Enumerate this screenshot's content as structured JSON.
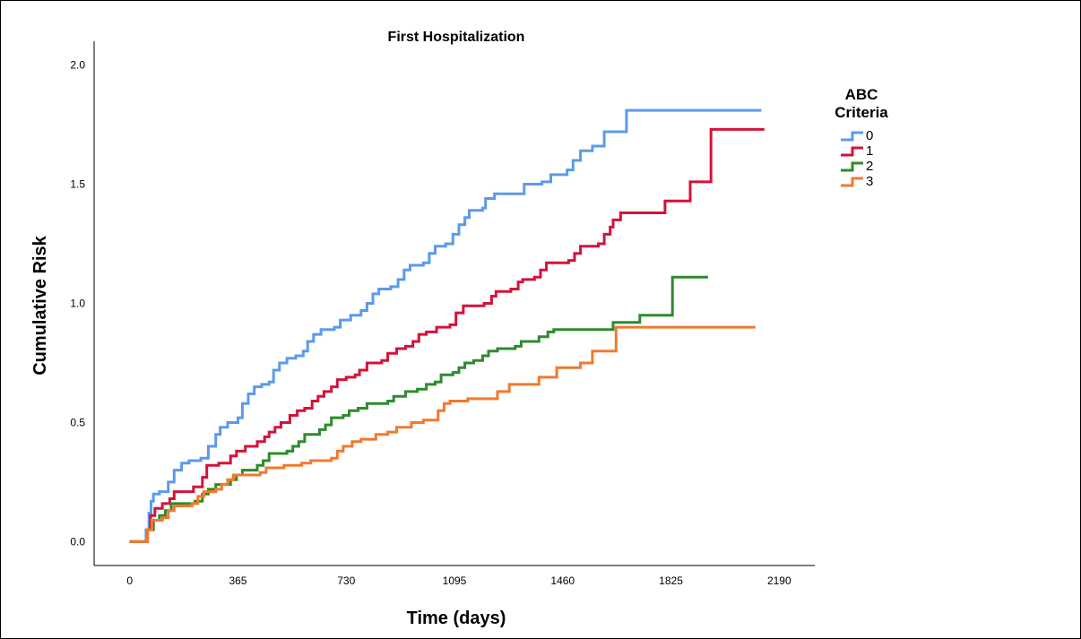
{
  "chart_data": {
    "type": "line",
    "step": true,
    "title": "First Hospitalization",
    "xlabel": "Time (days)",
    "ylabel": "Cumulative Risk",
    "xlim": [
      -120,
      2310
    ],
    "ylim": [
      -0.1,
      2.1
    ],
    "xticks": [
      0,
      365,
      730,
      1095,
      1460,
      1825,
      2190
    ],
    "yticks": [
      0.0,
      0.5,
      1.0,
      1.5,
      2.0
    ],
    "ytick_labels": [
      "0.0",
      "0.5",
      "1.0",
      "1.5",
      "2.0"
    ],
    "grid": false,
    "legend": {
      "title_lines": [
        "ABC",
        "Criteria"
      ],
      "position": "top-right"
    },
    "series": [
      {
        "name": "0",
        "color": "#5b9be8",
        "points": [
          [
            0,
            0
          ],
          [
            40,
            0
          ],
          [
            55,
            0.05
          ],
          [
            65,
            0.12
          ],
          [
            72,
            0.17
          ],
          [
            80,
            0.2
          ],
          [
            100,
            0.21
          ],
          [
            130,
            0.25
          ],
          [
            150,
            0.3
          ],
          [
            175,
            0.33
          ],
          [
            200,
            0.34
          ],
          [
            240,
            0.35
          ],
          [
            265,
            0.4
          ],
          [
            290,
            0.45
          ],
          [
            305,
            0.48
          ],
          [
            330,
            0.5
          ],
          [
            365,
            0.52
          ],
          [
            380,
            0.58
          ],
          [
            400,
            0.62
          ],
          [
            420,
            0.65
          ],
          [
            445,
            0.66
          ],
          [
            470,
            0.67
          ],
          [
            485,
            0.72
          ],
          [
            505,
            0.75
          ],
          [
            530,
            0.77
          ],
          [
            560,
            0.78
          ],
          [
            585,
            0.8
          ],
          [
            600,
            0.84
          ],
          [
            620,
            0.87
          ],
          [
            645,
            0.89
          ],
          [
            690,
            0.9
          ],
          [
            710,
            0.93
          ],
          [
            745,
            0.95
          ],
          [
            780,
            0.97
          ],
          [
            800,
            1.0
          ],
          [
            820,
            1.04
          ],
          [
            840,
            1.06
          ],
          [
            880,
            1.07
          ],
          [
            905,
            1.1
          ],
          [
            925,
            1.14
          ],
          [
            945,
            1.16
          ],
          [
            990,
            1.17
          ],
          [
            1010,
            1.21
          ],
          [
            1030,
            1.24
          ],
          [
            1065,
            1.25
          ],
          [
            1090,
            1.29
          ],
          [
            1110,
            1.33
          ],
          [
            1130,
            1.36
          ],
          [
            1145,
            1.39
          ],
          [
            1190,
            1.4
          ],
          [
            1200,
            1.44
          ],
          [
            1230,
            1.46
          ],
          [
            1330,
            1.5
          ],
          [
            1390,
            1.51
          ],
          [
            1420,
            1.54
          ],
          [
            1475,
            1.56
          ],
          [
            1495,
            1.6
          ],
          [
            1520,
            1.64
          ],
          [
            1560,
            1.66
          ],
          [
            1600,
            1.72
          ],
          [
            1675,
            1.81
          ],
          [
            2130,
            1.81
          ]
        ]
      },
      {
        "name": "1",
        "color": "#d3133a",
        "points": [
          [
            0,
            0
          ],
          [
            45,
            0
          ],
          [
            60,
            0.05
          ],
          [
            70,
            0.11
          ],
          [
            85,
            0.14
          ],
          [
            110,
            0.16
          ],
          [
            135,
            0.18
          ],
          [
            150,
            0.21
          ],
          [
            215,
            0.23
          ],
          [
            245,
            0.27
          ],
          [
            260,
            0.32
          ],
          [
            300,
            0.33
          ],
          [
            340,
            0.36
          ],
          [
            360,
            0.38
          ],
          [
            390,
            0.4
          ],
          [
            430,
            0.42
          ],
          [
            455,
            0.44
          ],
          [
            470,
            0.46
          ],
          [
            490,
            0.48
          ],
          [
            510,
            0.5
          ],
          [
            540,
            0.53
          ],
          [
            565,
            0.55
          ],
          [
            590,
            0.56
          ],
          [
            615,
            0.59
          ],
          [
            635,
            0.61
          ],
          [
            655,
            0.63
          ],
          [
            680,
            0.65
          ],
          [
            700,
            0.68
          ],
          [
            730,
            0.69
          ],
          [
            760,
            0.7
          ],
          [
            775,
            0.72
          ],
          [
            800,
            0.75
          ],
          [
            850,
            0.76
          ],
          [
            870,
            0.79
          ],
          [
            900,
            0.81
          ],
          [
            930,
            0.82
          ],
          [
            955,
            0.84
          ],
          [
            975,
            0.87
          ],
          [
            1000,
            0.88
          ],
          [
            1035,
            0.9
          ],
          [
            1080,
            0.91
          ],
          [
            1100,
            0.96
          ],
          [
            1125,
            0.99
          ],
          [
            1195,
            1.0
          ],
          [
            1220,
            1.03
          ],
          [
            1235,
            1.05
          ],
          [
            1285,
            1.06
          ],
          [
            1310,
            1.09
          ],
          [
            1325,
            1.1
          ],
          [
            1365,
            1.11
          ],
          [
            1385,
            1.14
          ],
          [
            1405,
            1.17
          ],
          [
            1480,
            1.18
          ],
          [
            1500,
            1.21
          ],
          [
            1520,
            1.24
          ],
          [
            1580,
            1.25
          ],
          [
            1600,
            1.29
          ],
          [
            1620,
            1.32
          ],
          [
            1630,
            1.35
          ],
          [
            1655,
            1.38
          ],
          [
            1805,
            1.43
          ],
          [
            1890,
            1.51
          ],
          [
            1960,
            1.73
          ],
          [
            2140,
            1.73
          ]
        ]
      },
      {
        "name": "2",
        "color": "#2e8b2e",
        "points": [
          [
            0,
            0
          ],
          [
            45,
            0
          ],
          [
            60,
            0.05
          ],
          [
            80,
            0.09
          ],
          [
            100,
            0.11
          ],
          [
            120,
            0.13
          ],
          [
            140,
            0.16
          ],
          [
            220,
            0.17
          ],
          [
            245,
            0.2
          ],
          [
            265,
            0.22
          ],
          [
            290,
            0.24
          ],
          [
            340,
            0.26
          ],
          [
            360,
            0.28
          ],
          [
            380,
            0.3
          ],
          [
            430,
            0.32
          ],
          [
            450,
            0.34
          ],
          [
            470,
            0.37
          ],
          [
            530,
            0.38
          ],
          [
            550,
            0.4
          ],
          [
            570,
            0.42
          ],
          [
            590,
            0.45
          ],
          [
            640,
            0.47
          ],
          [
            660,
            0.49
          ],
          [
            680,
            0.52
          ],
          [
            720,
            0.53
          ],
          [
            740,
            0.55
          ],
          [
            770,
            0.56
          ],
          [
            800,
            0.58
          ],
          [
            870,
            0.59
          ],
          [
            890,
            0.61
          ],
          [
            930,
            0.63
          ],
          [
            970,
            0.64
          ],
          [
            1000,
            0.66
          ],
          [
            1030,
            0.67
          ],
          [
            1050,
            0.7
          ],
          [
            1090,
            0.71
          ],
          [
            1110,
            0.73
          ],
          [
            1130,
            0.75
          ],
          [
            1160,
            0.76
          ],
          [
            1190,
            0.78
          ],
          [
            1210,
            0.8
          ],
          [
            1240,
            0.81
          ],
          [
            1300,
            0.82
          ],
          [
            1320,
            0.84
          ],
          [
            1380,
            0.86
          ],
          [
            1410,
            0.88
          ],
          [
            1430,
            0.89
          ],
          [
            1630,
            0.92
          ],
          [
            1720,
            0.95
          ],
          [
            1830,
            1.11
          ],
          [
            1950,
            1.11
          ]
        ]
      },
      {
        "name": "3",
        "color": "#f07a2e",
        "points": [
          [
            0,
            0
          ],
          [
            45,
            0
          ],
          [
            60,
            0.05
          ],
          [
            75,
            0.09
          ],
          [
            110,
            0.1
          ],
          [
            130,
            0.13
          ],
          [
            150,
            0.15
          ],
          [
            210,
            0.16
          ],
          [
            230,
            0.19
          ],
          [
            250,
            0.21
          ],
          [
            290,
            0.22
          ],
          [
            310,
            0.24
          ],
          [
            330,
            0.26
          ],
          [
            350,
            0.28
          ],
          [
            440,
            0.29
          ],
          [
            460,
            0.31
          ],
          [
            520,
            0.32
          ],
          [
            580,
            0.33
          ],
          [
            610,
            0.34
          ],
          [
            680,
            0.35
          ],
          [
            700,
            0.38
          ],
          [
            720,
            0.4
          ],
          [
            750,
            0.42
          ],
          [
            780,
            0.43
          ],
          [
            830,
            0.45
          ],
          [
            870,
            0.46
          ],
          [
            900,
            0.48
          ],
          [
            950,
            0.5
          ],
          [
            990,
            0.51
          ],
          [
            1040,
            0.55
          ],
          [
            1060,
            0.58
          ],
          [
            1080,
            0.59
          ],
          [
            1140,
            0.6
          ],
          [
            1240,
            0.63
          ],
          [
            1280,
            0.66
          ],
          [
            1380,
            0.69
          ],
          [
            1440,
            0.73
          ],
          [
            1520,
            0.75
          ],
          [
            1560,
            0.8
          ],
          [
            1640,
            0.9
          ],
          [
            2110,
            0.9
          ]
        ]
      }
    ]
  }
}
